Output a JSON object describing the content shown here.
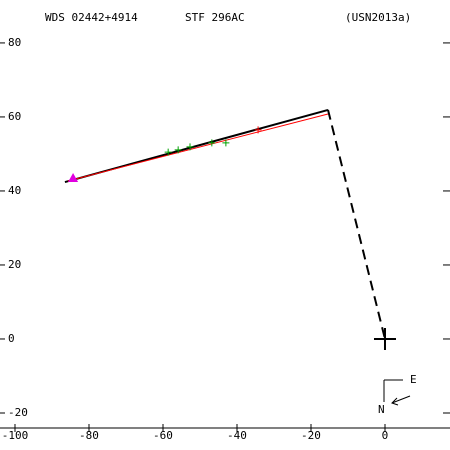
{
  "chart_data": {
    "type": "scatter",
    "title": "WDS 02442+4914",
    "subtitle": "STF 296AC",
    "reference": "(USN2013a)",
    "xlim": [
      -104.05,
      17.57
    ],
    "ylim": [
      -30,
      91.6
    ],
    "xticks": [
      -100,
      -80,
      -60,
      -40,
      -20,
      0
    ],
    "yticks": [
      -20,
      0,
      20,
      40,
      60,
      80
    ],
    "series": [
      {
        "name": "orbit",
        "kind": "line",
        "color": "#000000",
        "x": [
          -86.5,
          -15.4
        ],
        "y": [
          42.4,
          61.9
        ]
      },
      {
        "name": "motion",
        "kind": "line",
        "color": "#ff0000",
        "x": [
          -85.7,
          -15.4
        ],
        "y": [
          42.7,
          60.8
        ]
      },
      {
        "name": "path",
        "kind": "dash",
        "color": "#000000",
        "x": [
          -15.4,
          0
        ],
        "y": [
          61.9,
          0
        ]
      },
      {
        "name": "measures",
        "kind": "plus",
        "color": "#00a000",
        "x": [
          -58.6,
          -55.9,
          -52.7,
          -46.8,
          -43.0
        ],
        "y": [
          50.5,
          51.1,
          51.9,
          53.0,
          53.0
        ]
      },
      {
        "name": "measures-red",
        "kind": "plus",
        "color": "#ff0000",
        "x": [
          -34.3
        ],
        "y": [
          56.5
        ]
      },
      {
        "name": "first",
        "kind": "triangle",
        "color": "#e000e0",
        "x": [
          -84.3
        ],
        "y": [
          43.5
        ]
      },
      {
        "name": "primary",
        "kind": "bigplus",
        "color": "#000000",
        "x": [
          0
        ],
        "y": [
          0
        ]
      }
    ],
    "compass": {
      "east": "E",
      "north": "N"
    }
  }
}
